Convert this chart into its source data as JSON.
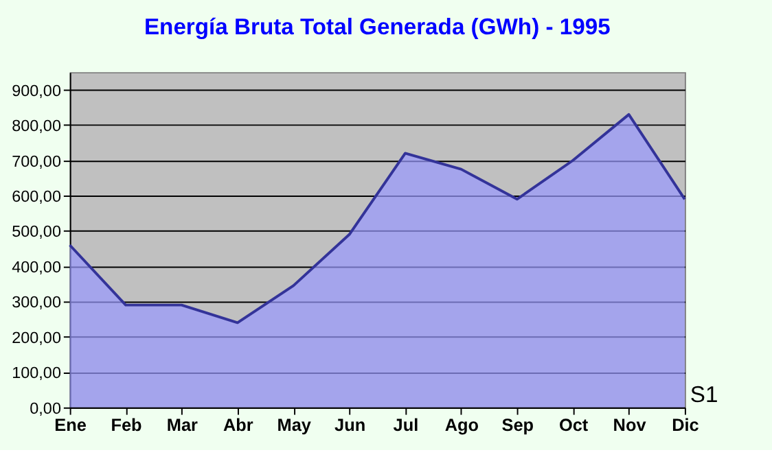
{
  "chart_data": {
    "type": "area",
    "title": "Energía Bruta Total Generada (GWh) - 1995",
    "categories": [
      "Ene",
      "Feb",
      "Mar",
      "Abr",
      "May",
      "Jun",
      "Jul",
      "Ago",
      "Sep",
      "Oct",
      "Nov",
      "Dic"
    ],
    "series": [
      {
        "name": "S1",
        "color": "#9999ff",
        "values": [
          460,
          290,
          290,
          240,
          345,
          490,
          720,
          675,
          590,
          700,
          830,
          590
        ]
      }
    ],
    "ylim": [
      0,
      950
    ],
    "yticks": [
      {
        "value": 0,
        "label": "0,00"
      },
      {
        "value": 100,
        "label": "100,00"
      },
      {
        "value": 200,
        "label": "200,00"
      },
      {
        "value": 300,
        "label": "300,00"
      },
      {
        "value": 400,
        "label": "400,00"
      },
      {
        "value": 500,
        "label": "500,00"
      },
      {
        "value": 600,
        "label": "600,00"
      },
      {
        "value": 700,
        "label": "700,00"
      },
      {
        "value": 800,
        "label": "800,00"
      },
      {
        "value": 900,
        "label": "900,00"
      }
    ],
    "grid": "y",
    "legend": false
  }
}
